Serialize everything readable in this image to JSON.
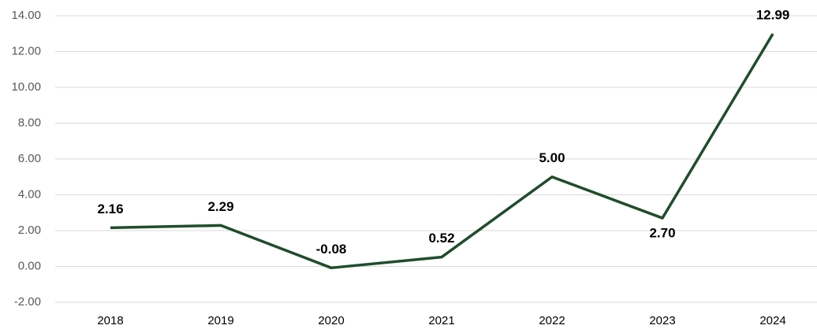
{
  "chart_data": {
    "type": "line",
    "categories": [
      "2018",
      "2019",
      "2020",
      "2021",
      "2022",
      "2023",
      "2024"
    ],
    "values": [
      2.16,
      2.29,
      -0.08,
      0.52,
      5.0,
      2.7,
      12.99
    ],
    "value_labels": [
      "2.16",
      "2.29",
      "-0.08",
      "0.52",
      "5.00",
      "2.70",
      "12.99"
    ],
    "color": "#1f4d2c",
    "ylim": [
      -2,
      14
    ],
    "yticks": [
      {
        "value": -2,
        "label": "-2.00"
      },
      {
        "value": 0,
        "label": "0.00"
      },
      {
        "value": 2,
        "label": "2.00"
      },
      {
        "value": 4,
        "label": "4.00"
      },
      {
        "value": 6,
        "label": "6.00"
      },
      {
        "value": 8,
        "label": "8.00"
      },
      {
        "value": 10,
        "label": "10.00"
      },
      {
        "value": 12,
        "label": "12.00"
      },
      {
        "value": 14,
        "label": "14.00"
      }
    ],
    "grid": true
  }
}
